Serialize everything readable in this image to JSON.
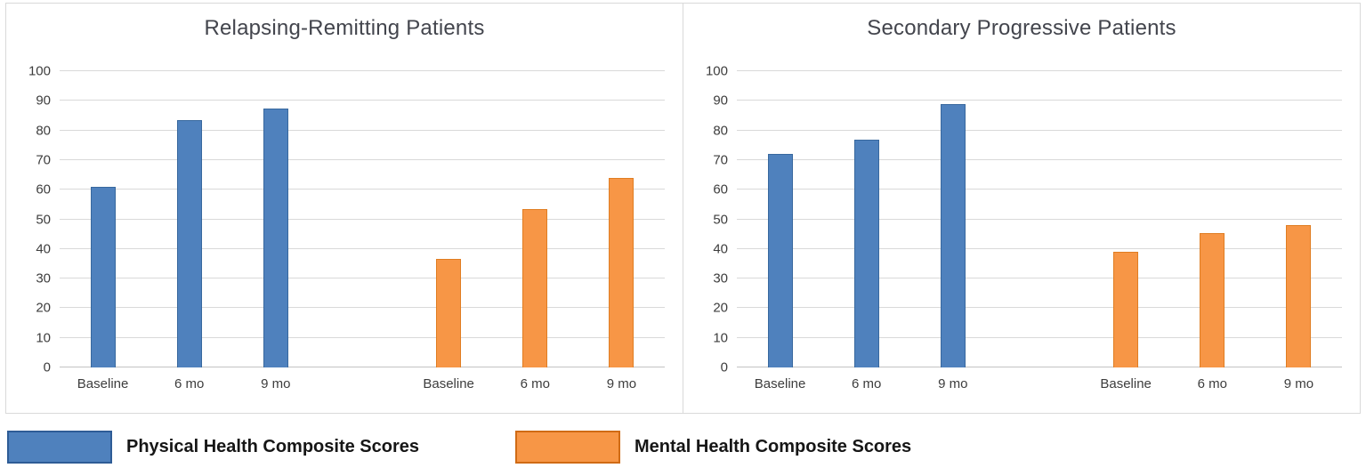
{
  "colors": {
    "physical": "#4F81BD",
    "physical_border": "#38689e",
    "mental": "#F79646",
    "mental_border": "#e07d22",
    "gridline": "#d9d9d9",
    "panel_border": "#d9d9d9",
    "title_text": "#43454d",
    "tick_text": "#3d3d3d"
  },
  "chart_data": [
    {
      "type": "bar",
      "title": "Relapsing-Remitting Patients",
      "categories": [
        "Baseline",
        "6 mo",
        "9 mo"
      ],
      "series": [
        {
          "name": "Physical Health Composite Scores",
          "values": [
            61,
            83.5,
            87.5
          ]
        },
        {
          "name": "Mental Health Composite Scores",
          "values": [
            36.5,
            53.5,
            64
          ]
        }
      ],
      "xlabel": "",
      "ylabel": "",
      "ylim": [
        0,
        100
      ],
      "ytick_step": 10,
      "grid": true,
      "layout_note": "series shown as two separated groups of 3 bars with an empty slot between"
    },
    {
      "type": "bar",
      "title": "Secondary Progressive Patients",
      "categories": [
        "Baseline",
        "6 mo",
        "9 mo"
      ],
      "series": [
        {
          "name": "Physical Health Composite Scores",
          "values": [
            72,
            77,
            89
          ]
        },
        {
          "name": "Mental Health Composite Scores",
          "values": [
            39,
            45.5,
            48
          ]
        }
      ],
      "xlabel": "",
      "ylabel": "",
      "ylim": [
        0,
        100
      ],
      "ytick_step": 10,
      "grid": true,
      "layout_note": "series shown as two separated groups of 3 bars with an empty slot between"
    }
  ],
  "legend": {
    "position": "bottom-outside",
    "items": [
      {
        "label": "Physical Health Composite Scores",
        "color_key": "physical"
      },
      {
        "label": "Mental Health Composite Scores",
        "color_key": "mental"
      }
    ]
  }
}
